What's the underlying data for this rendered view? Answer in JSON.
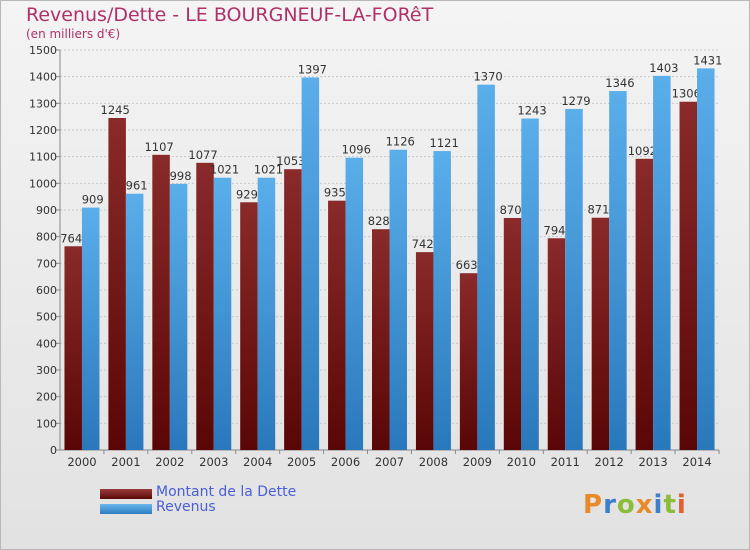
{
  "header": {
    "title": "Revenus/Dette - LE BOURGNEUF-LA-FORêT",
    "subtitle": "(en milliers d'€)"
  },
  "legend": [
    {
      "label": "Montant de la Dette",
      "color": "#6e1010"
    },
    {
      "label": "Revenus",
      "color": "#3d93d6"
    }
  ],
  "logo": {
    "text": "Proxiti"
  },
  "chart_data": {
    "type": "bar",
    "categories": [
      "2000",
      "2001",
      "2002",
      "2003",
      "2004",
      "2005",
      "2006",
      "2007",
      "2008",
      "2009",
      "2010",
      "2011",
      "2012",
      "2013",
      "2014"
    ],
    "series": [
      {
        "name": "Montant de la Dette",
        "values": [
          764,
          1245,
          1107,
          1077,
          929,
          1053,
          935,
          828,
          742,
          663,
          870,
          794,
          871,
          1092,
          1306
        ],
        "color": "#7a1c1c"
      },
      {
        "name": "Revenus",
        "values": [
          909,
          961,
          998,
          1021,
          1021,
          1397,
          1096,
          1126,
          1121,
          1370,
          1243,
          1279,
          1346,
          1403,
          1431
        ],
        "color": "#3d93d6"
      }
    ],
    "ylim": [
      0,
      1500
    ],
    "yticks": [
      0,
      100,
      200,
      300,
      400,
      500,
      600,
      700,
      800,
      900,
      1000,
      1100,
      1200,
      1300,
      1400,
      1500
    ],
    "grid": true,
    "legend_position": "bottom-left"
  }
}
